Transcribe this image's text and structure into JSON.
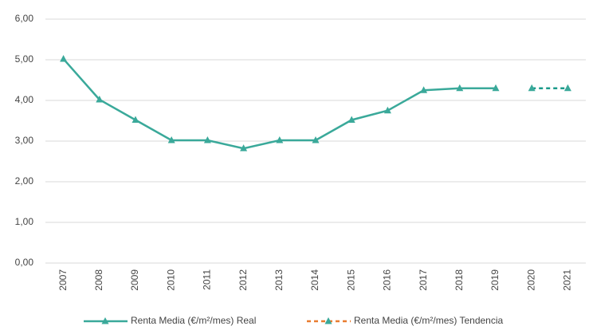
{
  "chart_data": {
    "type": "line",
    "categories": [
      "2007",
      "2008",
      "2009",
      "2010",
      "2011",
      "2012",
      "2013",
      "2014",
      "2015",
      "2016",
      "2017",
      "2018",
      "2019",
      "2020",
      "2021"
    ],
    "series": [
      {
        "name": "Renta Media (€/m²/mes) Real",
        "color": "#3aa99a",
        "dash": false,
        "values": [
          5.02,
          4.02,
          3.52,
          3.02,
          3.02,
          2.82,
          3.02,
          3.02,
          3.52,
          3.75,
          4.25,
          4.3,
          4.3,
          null,
          null
        ]
      },
      {
        "name": "Renta Media (€/m²/mes) Tendencia",
        "color": "#1a9a8a",
        "legend_color": "#e97c30",
        "marker_color": "#3aa99a",
        "dash": true,
        "values": [
          null,
          null,
          null,
          null,
          null,
          null,
          null,
          null,
          null,
          null,
          null,
          null,
          null,
          4.3,
          4.3
        ]
      }
    ],
    "ylim": [
      0,
      6
    ],
    "yticks": [
      {
        "value": 0,
        "label": "0,00"
      },
      {
        "value": 1,
        "label": "1,00"
      },
      {
        "value": 2,
        "label": "2,00"
      },
      {
        "value": 3,
        "label": "3,00"
      },
      {
        "value": 4,
        "label": "4,00"
      },
      {
        "value": 5,
        "label": "5,00"
      },
      {
        "value": 6,
        "label": "6,00"
      }
    ],
    "grid": true,
    "legend": "bottom"
  }
}
